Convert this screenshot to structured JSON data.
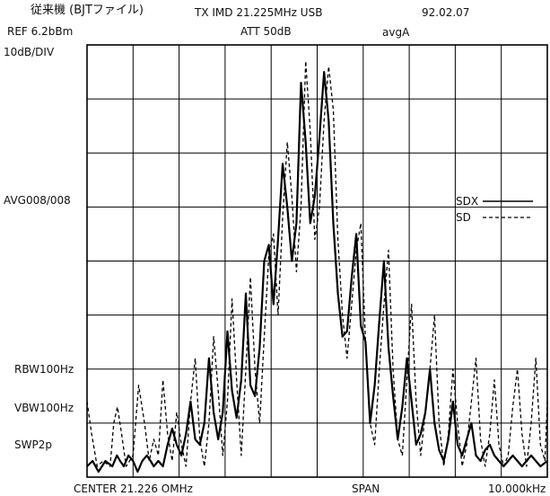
{
  "header": {
    "title_left": "従来機 (BJTファイル)",
    "title_mid": "TX IMD 21.225MHz USB",
    "date": "92.02.07",
    "ref": "REF  6.2bBm",
    "att": "ATT 50dB",
    "avg": "avgA"
  },
  "left_labels": {
    "scale": "10dB/DIV",
    "avg": "AVG008/008",
    "rbw": "RBW100Hz",
    "vbw": "VBW100Hz",
    "swp": "SWP2p"
  },
  "footer": {
    "center": "CENTER 21.226 OMHz",
    "span_label": "SPAN",
    "span_value": "10.000kHz"
  },
  "legend": [
    {
      "name": "SDX",
      "style": "solid"
    },
    {
      "name": "SD",
      "style": "dashed"
    }
  ],
  "chart_data": {
    "type": "line",
    "grid": true,
    "grid_divisions": {
      "x": 10,
      "y": 8
    },
    "xlim": [
      0,
      10
    ],
    "ylim": [
      -80,
      0
    ],
    "series": [
      {
        "name": "SDX",
        "style": "solid",
        "x": [
          0.0,
          0.12,
          0.25,
          0.4,
          0.55,
          0.65,
          0.72,
          0.8,
          0.9,
          1.0,
          1.1,
          1.2,
          1.3,
          1.38,
          1.45,
          1.55,
          1.65,
          1.75,
          1.85,
          1.95,
          2.05,
          2.15,
          2.25,
          2.35,
          2.45,
          2.55,
          2.65,
          2.75,
          2.85,
          2.95,
          3.05,
          3.15,
          3.25,
          3.35,
          3.45,
          3.55,
          3.65,
          3.75,
          3.85,
          3.95,
          4.05,
          4.15,
          4.25,
          4.35,
          4.45,
          4.55,
          4.65,
          4.75,
          4.85,
          4.95,
          5.05,
          5.15,
          5.25,
          5.35,
          5.45,
          5.55,
          5.65,
          5.75,
          5.85,
          5.95,
          6.05,
          6.15,
          6.25,
          6.35,
          6.45,
          6.55,
          6.65,
          6.75,
          6.85,
          6.95,
          7.05,
          7.15,
          7.25,
          7.35,
          7.45,
          7.55,
          7.65,
          7.75,
          7.85,
          7.95,
          8.05,
          8.15,
          8.25,
          8.35,
          8.45,
          8.55,
          8.65,
          8.75,
          8.85,
          8.95,
          9.05,
          9.15,
          9.25,
          9.35,
          9.45,
          9.55,
          9.65,
          9.75,
          9.85,
          10.0
        ],
        "y": [
          -78,
          -77,
          -79,
          -77,
          -78,
          -76,
          -77,
          -78,
          -76,
          -77,
          -79,
          -77,
          -76,
          -77,
          -78,
          -77,
          -78,
          -74,
          -71,
          -74,
          -76,
          -72,
          -66,
          -73,
          -74,
          -70,
          -58,
          -68,
          -73,
          -68,
          -53,
          -64,
          -69,
          -62,
          -46,
          -63,
          -65,
          -56,
          -40,
          -37,
          -48,
          -36,
          -22,
          -30,
          -40,
          -33,
          -7,
          -18,
          -33,
          -28,
          -17,
          -5,
          -14,
          -33,
          -46,
          -54,
          -53,
          -43,
          -35,
          -52,
          -55,
          -70,
          -63,
          -51,
          -40,
          -56,
          -65,
          -73,
          -67,
          -58,
          -66,
          -74,
          -72,
          -68,
          -60,
          -70,
          -75,
          -77,
          -73,
          -66,
          -74,
          -76,
          -73,
          -70,
          -76,
          -77,
          -75,
          -74,
          -76,
          -77,
          -78,
          -77,
          -76,
          -77,
          -78,
          -77,
          -76,
          -77,
          -78,
          -77
        ]
      },
      {
        "name": "SD",
        "style": "dashed",
        "x": [
          0.0,
          0.1,
          0.22,
          0.35,
          0.5,
          0.58,
          0.66,
          0.75,
          0.85,
          1.0,
          1.12,
          1.25,
          1.35,
          1.45,
          1.55,
          1.65,
          1.75,
          1.85,
          1.95,
          2.05,
          2.15,
          2.25,
          2.35,
          2.45,
          2.55,
          2.65,
          2.75,
          2.85,
          2.95,
          3.05,
          3.15,
          3.25,
          3.35,
          3.45,
          3.55,
          3.65,
          3.75,
          3.85,
          3.95,
          4.05,
          4.15,
          4.25,
          4.35,
          4.45,
          4.55,
          4.65,
          4.75,
          4.85,
          4.95,
          5.05,
          5.15,
          5.25,
          5.35,
          5.45,
          5.55,
          5.65,
          5.75,
          5.85,
          5.95,
          6.05,
          6.15,
          6.25,
          6.35,
          6.45,
          6.55,
          6.65,
          6.75,
          6.85,
          6.95,
          7.05,
          7.15,
          7.25,
          7.35,
          7.45,
          7.55,
          7.65,
          7.75,
          7.85,
          7.95,
          8.05,
          8.15,
          8.25,
          8.35,
          8.45,
          8.55,
          8.65,
          8.75,
          8.85,
          8.95,
          9.05,
          9.15,
          9.25,
          9.35,
          9.45,
          9.55,
          9.65,
          9.75,
          9.85,
          9.95,
          10.0
        ],
        "y": [
          -66,
          -72,
          -78,
          -77,
          -78,
          -70,
          -67,
          -72,
          -78,
          -76,
          -63,
          -70,
          -77,
          -73,
          -76,
          -62,
          -72,
          -77,
          -68,
          -74,
          -78,
          -66,
          -58,
          -73,
          -78,
          -70,
          -54,
          -64,
          -76,
          -66,
          -47,
          -62,
          -76,
          -60,
          -43,
          -60,
          -70,
          -54,
          -39,
          -35,
          -50,
          -32,
          -18,
          -28,
          -42,
          -30,
          -3,
          -16,
          -36,
          -30,
          -14,
          -4,
          -12,
          -36,
          -50,
          -58,
          -48,
          -38,
          -33,
          -55,
          -70,
          -74,
          -60,
          -48,
          -38,
          -60,
          -73,
          -76,
          -62,
          -48,
          -66,
          -76,
          -68,
          -60,
          -50,
          -70,
          -78,
          -72,
          -60,
          -70,
          -78,
          -74,
          -66,
          -58,
          -73,
          -78,
          -72,
          -62,
          -74,
          -78,
          -76,
          -67,
          -60,
          -72,
          -78,
          -70,
          -58,
          -74,
          -77,
          -66
        ]
      }
    ]
  }
}
